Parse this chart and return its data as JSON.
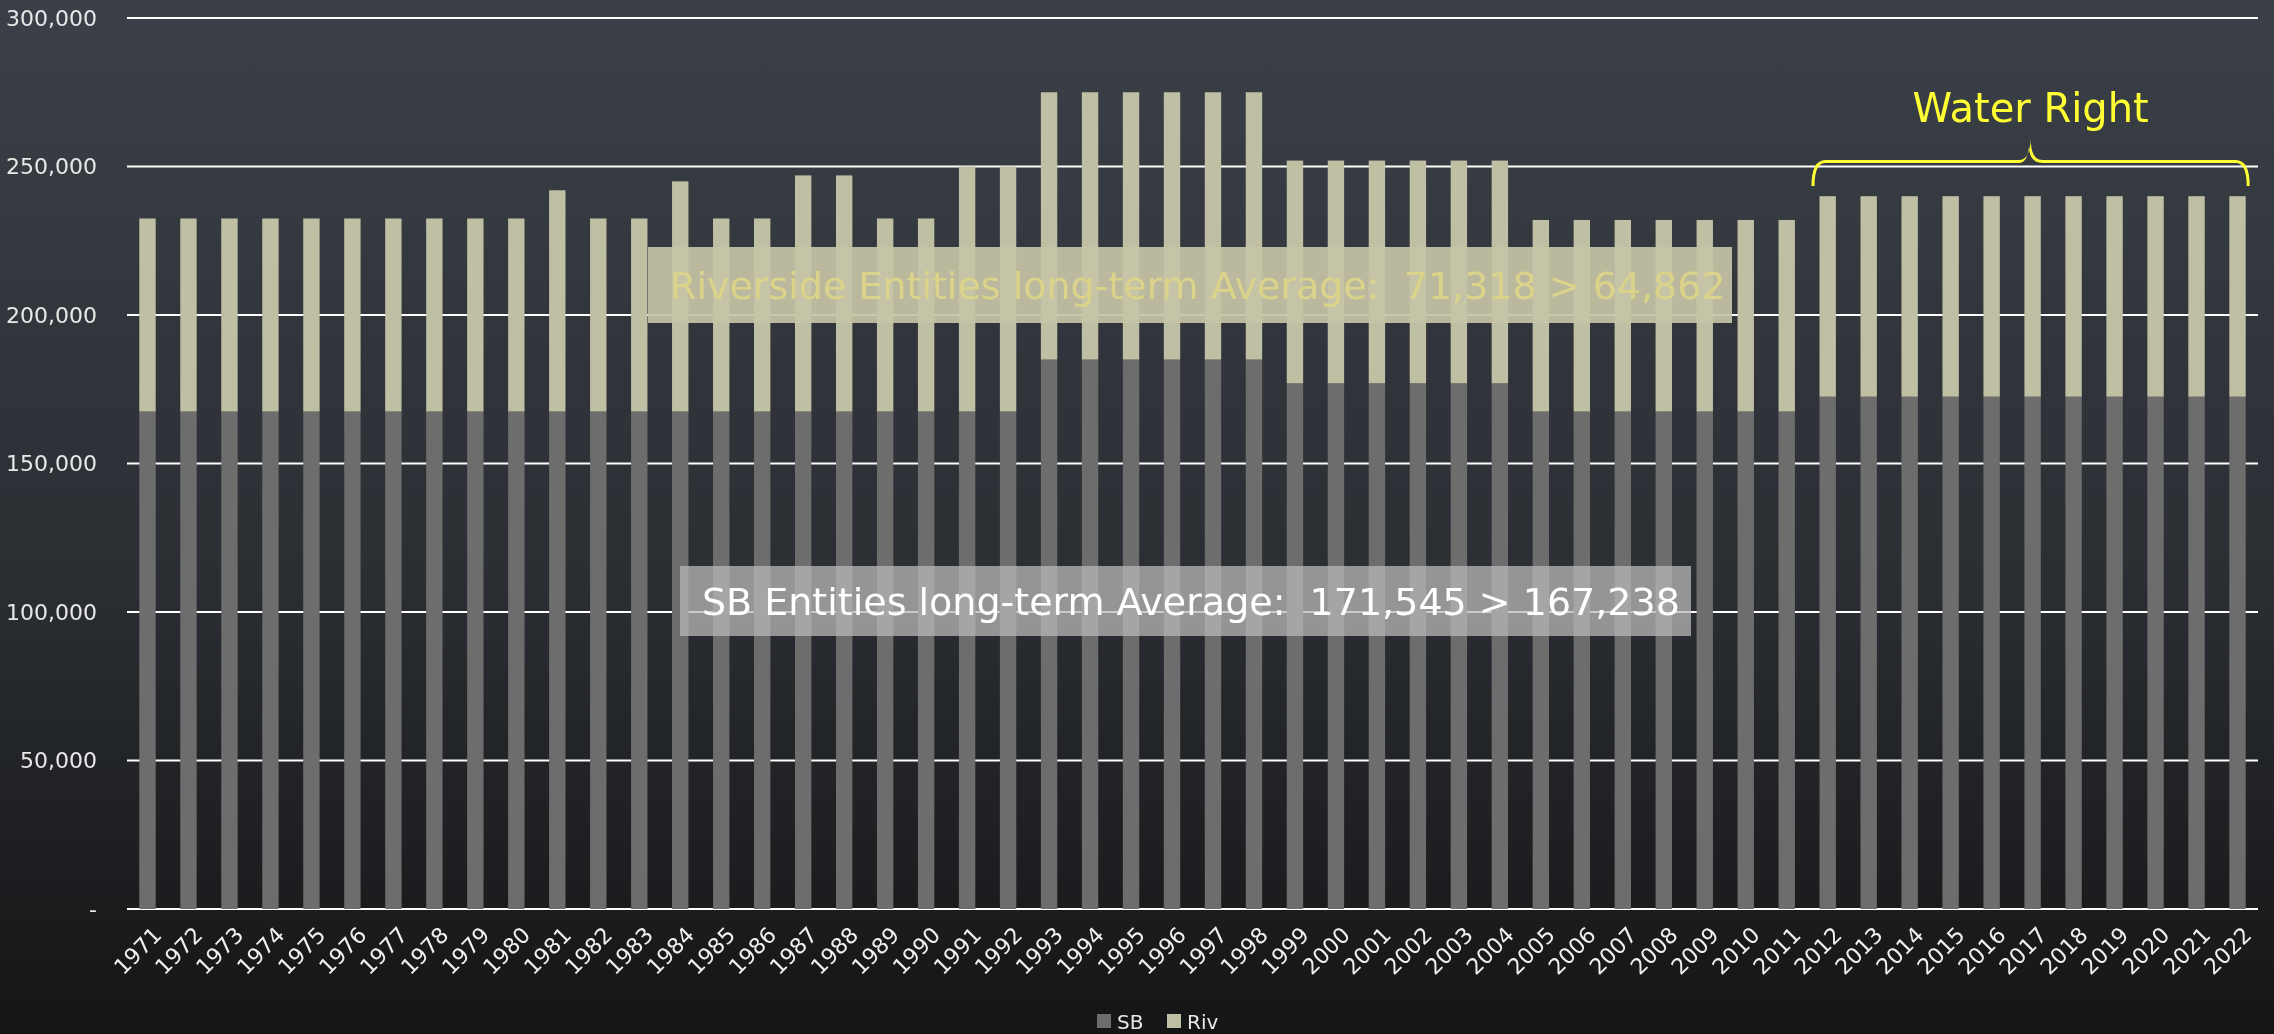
{
  "chart_data": {
    "type": "bar",
    "stacked": true,
    "categories": [
      "1971",
      "1972",
      "1973",
      "1974",
      "1975",
      "1976",
      "1977",
      "1978",
      "1979",
      "1980",
      "1981",
      "1982",
      "1983",
      "1984",
      "1985",
      "1986",
      "1987",
      "1988",
      "1989",
      "1990",
      "1991",
      "1992",
      "1993",
      "1994",
      "1995",
      "1996",
      "1997",
      "1998",
      "1999",
      "2000",
      "2001",
      "2002",
      "2003",
      "2004",
      "2005",
      "2006",
      "2007",
      "2008",
      "2009",
      "2010",
      "2011",
      "2012",
      "2013",
      "2014",
      "2015",
      "2016",
      "2017",
      "2018",
      "2019",
      "2020",
      "2021",
      "2022"
    ],
    "series": [
      {
        "name": "SB",
        "color": "#6d6d6d",
        "values": [
          167500,
          167500,
          167500,
          167500,
          167500,
          167500,
          167500,
          167500,
          167500,
          167500,
          167500,
          167500,
          167500,
          167500,
          167500,
          167500,
          167500,
          167500,
          167500,
          167500,
          167500,
          167500,
          185000,
          185000,
          185000,
          185000,
          185000,
          185000,
          177000,
          177000,
          177000,
          177000,
          177000,
          177000,
          167500,
          167500,
          167500,
          167500,
          167500,
          167500,
          167500,
          172500,
          172500,
          172500,
          172500,
          172500,
          172500,
          172500,
          172500,
          172500,
          172500,
          172500
        ]
      },
      {
        "name": "Riv",
        "color": "#bfbfa3",
        "values": [
          65000,
          65000,
          65000,
          65000,
          65000,
          65000,
          65000,
          65000,
          65000,
          65000,
          74500,
          65000,
          65000,
          77500,
          65000,
          65000,
          79500,
          79500,
          65000,
          65000,
          82500,
          82500,
          90000,
          90000,
          90000,
          90000,
          90000,
          90000,
          75000,
          75000,
          75000,
          75000,
          75000,
          75000,
          64500,
          64500,
          64500,
          64500,
          64500,
          64500,
          64500,
          67500,
          67500,
          67500,
          67500,
          67500,
          67500,
          67500,
          67500,
          67500,
          67500,
          67500
        ]
      }
    ],
    "ylim": [
      0,
      300000
    ],
    "yticks": [
      {
        "value": 0,
        "label": "-"
      },
      {
        "value": 50000,
        "label": "50,000"
      },
      {
        "value": 100000,
        "label": "100,000"
      },
      {
        "value": 150000,
        "label": "150,000"
      },
      {
        "value": 200000,
        "label": "200,000"
      },
      {
        "value": 250000,
        "label": "250,000"
      },
      {
        "value": 300000,
        "label": "300,000"
      }
    ],
    "grid": "y",
    "legend": "bottom",
    "annotations": [
      "Riverside Entities long-term Average:  71,318 > 64,862",
      "SB Entities long-term Average:  171,545 > 167,238",
      "Water Right"
    ]
  }
}
